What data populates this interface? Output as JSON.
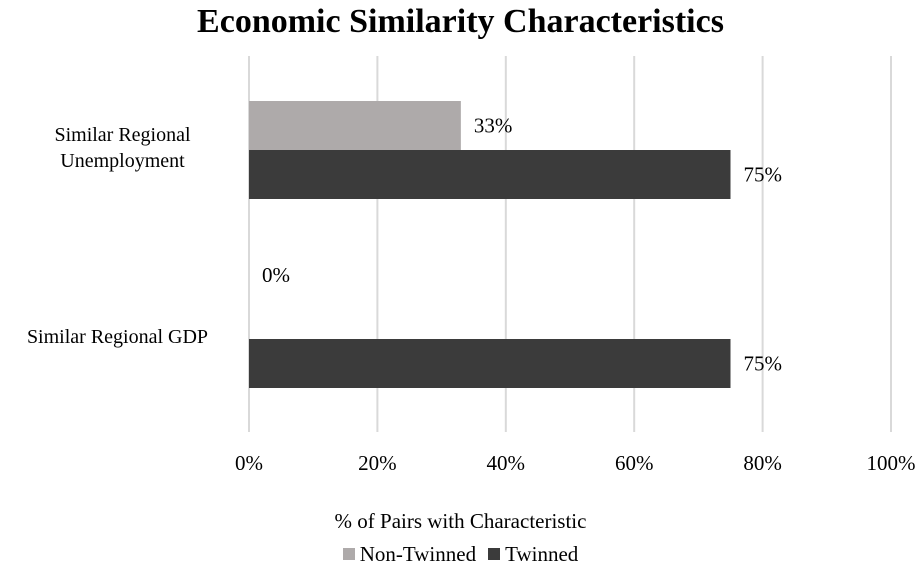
{
  "chart_data": {
    "type": "bar",
    "orientation": "horizontal",
    "title": "Economic Similarity Characteristics",
    "xlabel": "% of Pairs with Characteristic",
    "ylabel": "",
    "xlim": [
      0,
      100
    ],
    "x_ticks": [
      "0%",
      "20%",
      "40%",
      "60%",
      "80%",
      "100%"
    ],
    "x_tick_values": [
      0,
      20,
      40,
      60,
      80,
      100
    ],
    "grid": "vertical",
    "legend_position": "bottom",
    "categories": [
      "Similar Regional Unemployment",
      "Similar Regional GDP"
    ],
    "category_label_lines": [
      [
        "Similar Regional",
        "Unemployment"
      ],
      [
        "Similar Regional GDP"
      ]
    ],
    "series": [
      {
        "name": "Non-Twinned",
        "color": "#aeaaaa",
        "values": [
          33,
          0
        ],
        "labels": [
          "33%",
          "0%"
        ]
      },
      {
        "name": "Twinned",
        "color": "#3b3b3b",
        "values": [
          75,
          75
        ],
        "labels": [
          "75%",
          "75%"
        ]
      }
    ]
  }
}
